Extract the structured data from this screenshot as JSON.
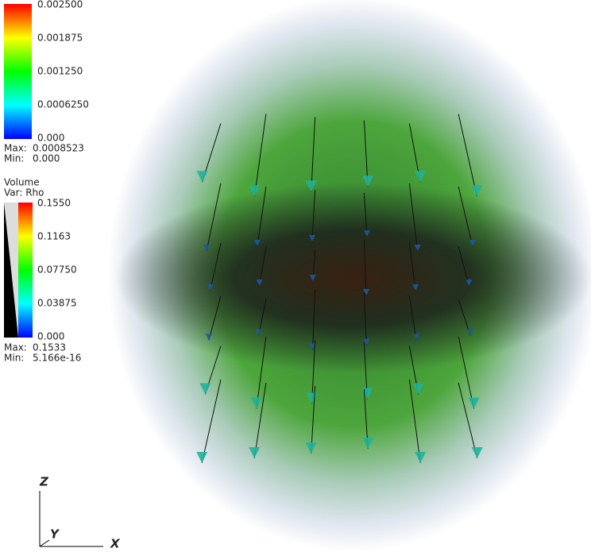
{
  "legends": [
    {
      "ticks": [
        "0.002500",
        "0.001875",
        "0.001250",
        "0.0006250",
        "0.000"
      ],
      "max_label": "Max:",
      "max": "0.0008523",
      "min_label": "Min:",
      "min": "0.000"
    },
    {
      "title": "Volume",
      "var": "Var: Rho",
      "ticks": [
        "0.1550",
        "0.1163",
        "0.07750",
        "0.03875",
        "0.000"
      ],
      "max_label": "Max:",
      "max": "0.1533",
      "min_label": "Min:",
      "min": "5.166e-16"
    }
  ],
  "axes": {
    "z": "Z",
    "y": "Y",
    "x": "X"
  }
}
